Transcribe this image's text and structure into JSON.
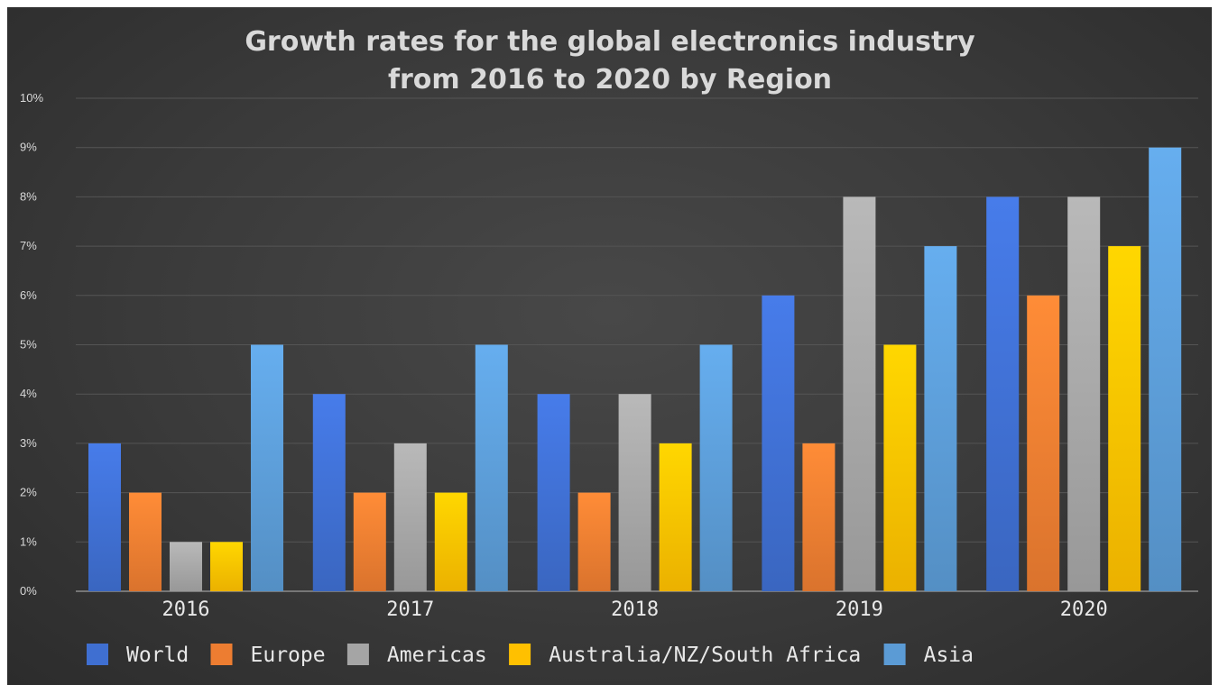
{
  "chart_data": {
    "type": "bar",
    "title_lines": [
      "Growth rates for the global electronics industry",
      "from 2016 to 2020 by Region"
    ],
    "categories": [
      "2016",
      "2017",
      "2018",
      "2019",
      "2020"
    ],
    "y_ticks": [
      "0%",
      "1%",
      "2%",
      "3%",
      "4%",
      "5%",
      "6%",
      "7%",
      "8%",
      "9%",
      "10%"
    ],
    "ylim": [
      0,
      10
    ],
    "grid": true,
    "legend_position": "bottom",
    "series": [
      {
        "name": "World",
        "color": "#3f6fd1",
        "values": [
          3,
          4,
          4,
          6,
          8
        ]
      },
      {
        "name": "Europe",
        "color": "#ed7d31",
        "values": [
          2,
          2,
          2,
          3,
          6
        ]
      },
      {
        "name": "Americas",
        "color": "#a5a5a5",
        "values": [
          1,
          3,
          4,
          8,
          8
        ]
      },
      {
        "name": "Australia/NZ/South Africa",
        "color": "#ffc000",
        "values": [
          1,
          2,
          3,
          5,
          7
        ]
      },
      {
        "name": "Asia",
        "color": "#5b9bd5",
        "values": [
          5,
          5,
          5,
          7,
          9
        ]
      }
    ]
  }
}
